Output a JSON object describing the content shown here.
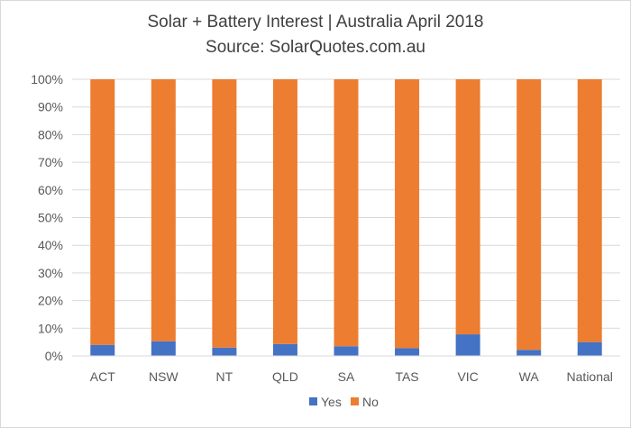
{
  "chart_data": {
    "type": "bar",
    "stacked": true,
    "title": "Solar + Battery Interest  | Australia April 2018",
    "subtitle": "Source: SolarQuotes.com.au",
    "categories": [
      "ACT",
      "NSW",
      "NT",
      "QLD",
      "SA",
      "TAS",
      "VIC",
      "WA",
      "National"
    ],
    "series": [
      {
        "name": "Yes",
        "color": "#4472c4",
        "values": [
          4,
          5.3,
          3,
          4.3,
          3.5,
          2.8,
          7.8,
          2.2,
          5
        ]
      },
      {
        "name": "No",
        "color": "#ed7d31",
        "values": [
          96,
          94.7,
          97,
          95.7,
          96.5,
          97.2,
          92.2,
          97.8,
          95
        ]
      }
    ],
    "ylim": [
      0,
      100
    ],
    "y_ticks": [
      "0%",
      "10%",
      "20%",
      "30%",
      "40%",
      "50%",
      "60%",
      "70%",
      "80%",
      "90%",
      "100%"
    ],
    "grid": true,
    "legend_position": "bottom"
  }
}
